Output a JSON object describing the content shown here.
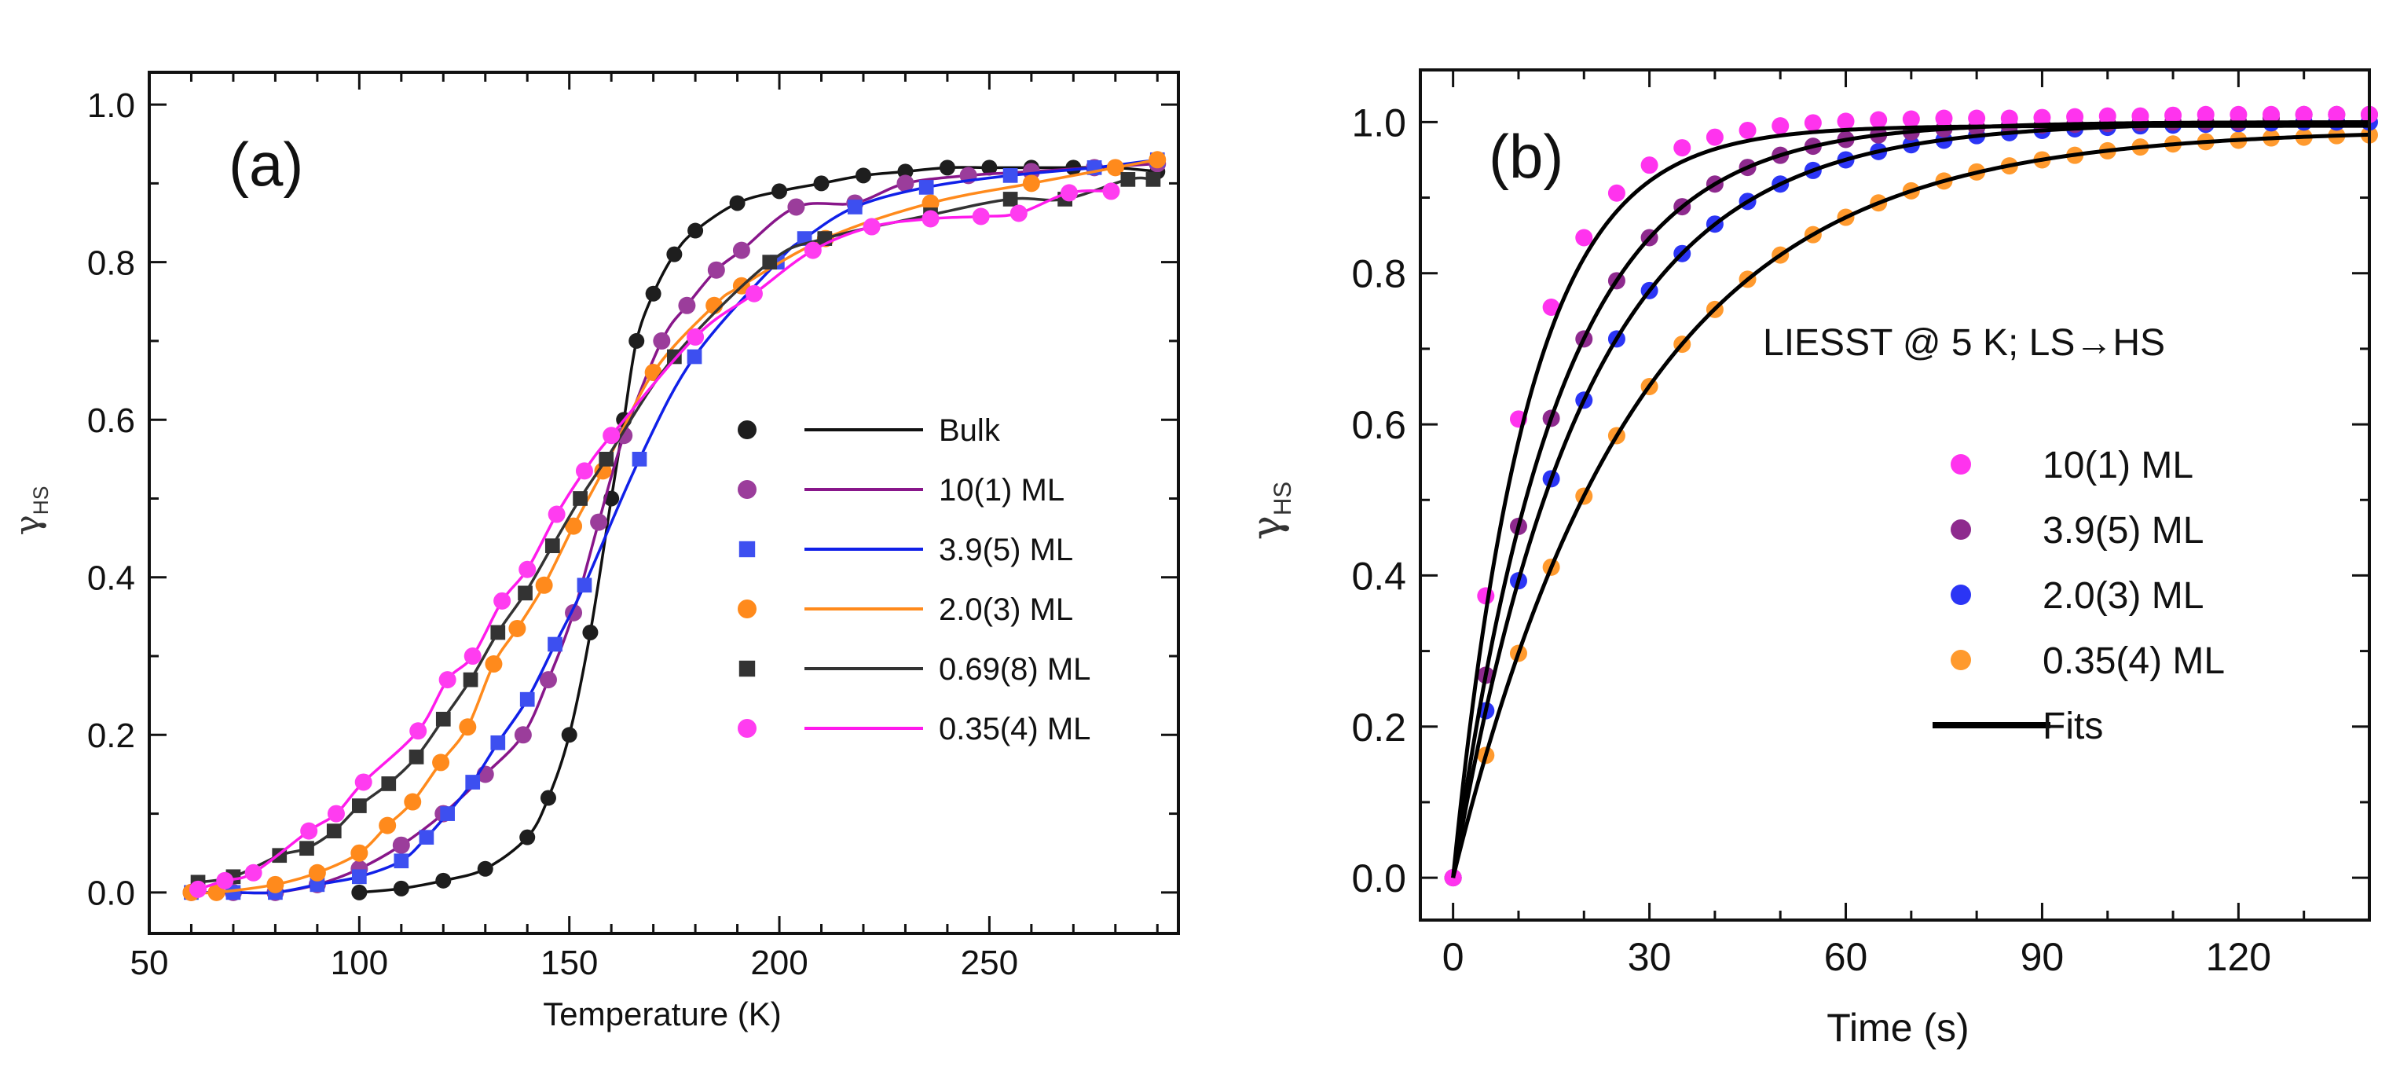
{
  "chart_data": [
    {
      "type": "scatter",
      "panel_label": "(a)",
      "xlabel": "Temperature (K)",
      "ylabel": "γ",
      "ylabel_sub": "HS",
      "xlim": [
        50,
        295
      ],
      "ylim": [
        -0.052,
        1.041
      ],
      "xticks": [
        50,
        100,
        150,
        200,
        250
      ],
      "xtick_labels": [
        "50",
        "100",
        "150",
        "200",
        "250"
      ],
      "yticks": [
        0.0,
        0.2,
        0.4,
        0.6,
        0.8,
        1.0
      ],
      "ytick_labels": [
        "0.0",
        "0.2",
        "0.4",
        "0.6",
        "0.8",
        "1.0"
      ],
      "legend_position": "center-right",
      "series": [
        {
          "name": "Bulk",
          "marker": "circle",
          "color": "#1e1e1e",
          "line_color": "#111111",
          "x": [
            100,
            110,
            120,
            130,
            140,
            145,
            150,
            155,
            160,
            163,
            166,
            170,
            175,
            180,
            190,
            200,
            210,
            220,
            230,
            240,
            250,
            260,
            270,
            280,
            290
          ],
          "y": [
            0.0,
            0.005,
            0.015,
            0.03,
            0.07,
            0.12,
            0.2,
            0.33,
            0.5,
            0.6,
            0.7,
            0.76,
            0.81,
            0.84,
            0.875,
            0.89,
            0.9,
            0.91,
            0.915,
            0.92,
            0.92,
            0.92,
            0.92,
            0.92,
            0.915
          ]
        },
        {
          "name": "10(1) ML",
          "marker": "circle",
          "color": "#9b3d9b",
          "line_color": "#88168a",
          "x": [
            60,
            70,
            80,
            90,
            100,
            110,
            120,
            130,
            139,
            145,
            151,
            157,
            163,
            172,
            178,
            185,
            191,
            204,
            218,
            230,
            245,
            260,
            275,
            290
          ],
          "y": [
            0.0,
            0.0,
            0.0,
            0.01,
            0.03,
            0.06,
            0.1,
            0.15,
            0.2,
            0.27,
            0.355,
            0.47,
            0.58,
            0.7,
            0.745,
            0.79,
            0.815,
            0.87,
            0.875,
            0.9,
            0.91,
            0.915,
            0.92,
            0.925
          ]
        },
        {
          "name": "3.9(5) ML",
          "marker": "square",
          "color": "#3d4ff0",
          "line_color": "#1020e8",
          "x": [
            60,
            70,
            80,
            90,
            100,
            110,
            116,
            121,
            127,
            133,
            140,
            146.6,
            153.6,
            166.7,
            179.8,
            199.5,
            206,
            218,
            235,
            255,
            275,
            290
          ],
          "y": [
            0.0,
            0.0,
            0.0,
            0.01,
            0.02,
            0.04,
            0.07,
            0.1,
            0.14,
            0.19,
            0.245,
            0.315,
            0.39,
            0.55,
            0.68,
            0.8,
            0.83,
            0.87,
            0.895,
            0.91,
            0.92,
            0.93
          ]
        },
        {
          "name": "2.0(3) ML",
          "marker": "circle",
          "color": "#ff8a1c",
          "line_color": "#ff8a1c",
          "x": [
            60,
            66,
            80,
            90,
            100,
            106.7,
            112.7,
            119.4,
            125.8,
            132,
            137.6,
            144,
            151,
            158,
            170,
            184.5,
            191,
            211,
            236,
            260,
            280,
            290
          ],
          "y": [
            0.0,
            0.0,
            0.01,
            0.025,
            0.05,
            0.085,
            0.115,
            0.165,
            0.21,
            0.29,
            0.335,
            0.39,
            0.465,
            0.535,
            0.66,
            0.745,
            0.77,
            0.83,
            0.875,
            0.9,
            0.92,
            0.93
          ]
        },
        {
          "name": "0.69(8) ML",
          "marker": "square",
          "color": "#333333",
          "line_color": "#333333",
          "x": [
            61.6,
            70,
            81,
            87.5,
            94,
            100,
            107,
            113.6,
            120,
            126.5,
            133,
            139.5,
            146,
            152.6,
            158.8,
            175,
            197.7,
            210.8,
            236,
            255,
            268,
            283,
            289
          ],
          "y": [
            0.013,
            0.02,
            0.047,
            0.056,
            0.078,
            0.11,
            0.138,
            0.172,
            0.22,
            0.27,
            0.33,
            0.38,
            0.44,
            0.5,
            0.55,
            0.68,
            0.8,
            0.83,
            0.86,
            0.88,
            0.88,
            0.905,
            0.905
          ]
        },
        {
          "name": "0.35(4) ML",
          "marker": "circle",
          "color": "#ff3cf0",
          "line_color": "#ff1aec",
          "x": [
            61.6,
            68,
            74.8,
            88,
            94.5,
            101,
            114,
            121,
            127,
            134,
            140,
            147,
            153.6,
            160,
            180,
            194,
            208,
            222,
            236,
            248,
            257,
            269,
            279
          ],
          "y": [
            0.004,
            0.015,
            0.025,
            0.078,
            0.1,
            0.14,
            0.205,
            0.27,
            0.3,
            0.37,
            0.41,
            0.48,
            0.535,
            0.58,
            0.705,
            0.76,
            0.815,
            0.845,
            0.855,
            0.858,
            0.862,
            0.888,
            0.89
          ]
        }
      ]
    },
    {
      "type": "scatter",
      "panel_label": "(b)",
      "annotation": "LIESST @ 5 K; LS→HS",
      "xlabel": "Time (s)",
      "ylabel": "γ",
      "ylabel_sub": "HS",
      "xlim": [
        -5,
        140
      ],
      "ylim": [
        -0.056,
        1.069
      ],
      "xticks": [
        0,
        30,
        60,
        90,
        120
      ],
      "xtick_labels": [
        "0",
        "30",
        "60",
        "90",
        "120"
      ],
      "yticks": [
        0.0,
        0.2,
        0.4,
        0.6,
        0.8,
        1.0
      ],
      "ytick_labels": [
        "0.0",
        "0.2",
        "0.4",
        "0.6",
        "0.8",
        "1.0"
      ],
      "legend_position": "right",
      "fits_label": "Fits",
      "x": [
        0,
        5,
        10,
        15,
        20,
        25,
        30,
        35,
        40,
        45,
        50,
        55,
        60,
        65,
        70,
        75,
        80,
        85,
        90,
        95,
        100,
        105,
        110,
        115,
        120,
        125,
        130,
        135,
        140
      ],
      "series": [
        {
          "name": "0.35(4) ML",
          "color": "#ff9a2e",
          "fit": {
            "A": 0.99,
            "tau": 28
          },
          "y": [
            0,
            0.162,
            0.297,
            0.411,
            0.505,
            0.585,
            0.65,
            0.706,
            0.752,
            0.792,
            0.824,
            0.851,
            0.874,
            0.893,
            0.909,
            0.922,
            0.934,
            0.942,
            0.95,
            0.956,
            0.962,
            0.967,
            0.971,
            0.974,
            0.976,
            0.979,
            0.98,
            0.982,
            0.983
          ]
        },
        {
          "name": "2.0(3) ML",
          "color": "#2b35f5",
          "fit": {
            "A": 1.0,
            "tau": 20
          },
          "y": [
            0,
            0.221,
            0.393,
            0.528,
            0.632,
            0.713,
            0.777,
            0.826,
            0.865,
            0.895,
            0.918,
            0.936,
            0.95,
            0.961,
            0.97,
            0.976,
            0.982,
            0.986,
            0.989,
            0.991,
            0.993,
            0.995,
            0.996,
            0.997,
            0.998,
            0.999,
            1.0,
            1.0,
            1.0
          ]
        },
        {
          "name": "3.9(5) ML",
          "color": "#8e2a8e",
          "fit": {
            "A": 1.0,
            "tau": 16
          },
          "y": [
            0,
            0.268,
            0.465,
            0.608,
            0.713,
            0.79,
            0.847,
            0.888,
            0.918,
            0.94,
            0.956,
            0.968,
            0.977,
            0.983,
            0.987,
            0.991,
            0.993,
            0.995,
            0.996,
            0.997,
            0.998,
            0.999,
            1.0,
            1.0,
            1.0,
            1.005,
            1.01,
            1.01,
            1.01
          ]
        },
        {
          "name": "10(1) ML",
          "color": "#ff33ee",
          "fit": {
            "A": 0.995,
            "tau": 11.5
          },
          "y": [
            0,
            0.373,
            0.607,
            0.755,
            0.847,
            0.906,
            0.943,
            0.966,
            0.98,
            0.989,
            0.995,
            0.999,
            1.001,
            1.003,
            1.004,
            1.005,
            1.005,
            1.005,
            1.006,
            1.007,
            1.008,
            1.008,
            1.009,
            1.01,
            1.01,
            1.01,
            1.01,
            1.01,
            1.01
          ]
        }
      ],
      "legend_order": [
        3,
        2,
        1,
        0
      ]
    }
  ]
}
